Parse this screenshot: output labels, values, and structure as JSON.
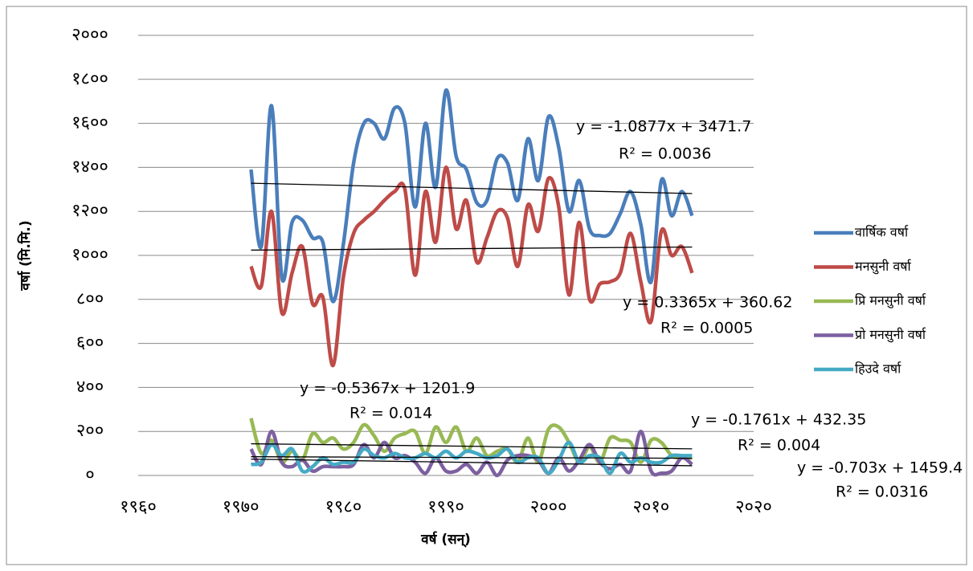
{
  "chart_data": {
    "type": "line",
    "xlabel": "वर्ष (सन्)",
    "ylabel": "वर्षा (मि.मि.)",
    "x": [
      1971,
      1972,
      1973,
      1974,
      1975,
      1976,
      1977,
      1978,
      1979,
      1980,
      1981,
      1982,
      1983,
      1984,
      1985,
      1986,
      1987,
      1988,
      1989,
      1990,
      1991,
      1992,
      1993,
      1994,
      1995,
      1996,
      1997,
      1998,
      1999,
      2000,
      2001,
      2002,
      2003,
      2004,
      2005,
      2006,
      2007,
      2008,
      2009,
      2010,
      2011,
      2012,
      2013,
      2014
    ],
    "series": [
      {
        "name": "वार्षिक वर्षा",
        "color": "#4a7ebb",
        "values": [
          1390,
          1040,
          1680,
          900,
          1150,
          1160,
          1080,
          1060,
          790,
          1050,
          1420,
          1600,
          1600,
          1530,
          1670,
          1600,
          1220,
          1600,
          1310,
          1750,
          1450,
          1390,
          1240,
          1250,
          1440,
          1420,
          1250,
          1530,
          1340,
          1630,
          1490,
          1200,
          1340,
          1120,
          1090,
          1100,
          1190,
          1290,
          1140,
          880,
          1340,
          1180,
          1290,
          1180
        ]
      },
      {
        "name": "मनसुनी वर्षा",
        "color": "#be4b48",
        "values": [
          950,
          860,
          1200,
          740,
          920,
          1040,
          780,
          810,
          500,
          900,
          1100,
          1160,
          1200,
          1250,
          1290,
          1300,
          910,
          1290,
          1060,
          1400,
          1120,
          1250,
          970,
          1080,
          1200,
          1170,
          950,
          1230,
          1110,
          1350,
          1220,
          820,
          1150,
          800,
          870,
          880,
          920,
          1100,
          880,
          700,
          1110,
          1000,
          1040,
          920
        ]
      },
      {
        "name": "प्रि मनसुनी वर्षा",
        "color": "#98b954",
        "values": [
          260,
          100,
          160,
          60,
          110,
          70,
          190,
          150,
          170,
          120,
          150,
          230,
          180,
          110,
          170,
          190,
          200,
          100,
          220,
          150,
          220,
          110,
          170,
          90,
          110,
          120,
          60,
          170,
          60,
          210,
          220,
          150,
          60,
          130,
          60,
          170,
          160,
          150,
          60,
          160,
          150,
          90,
          80,
          80
        ]
      },
      {
        "name": "प्रो मनसुनी वर्षा",
        "color": "#7d60a0",
        "values": [
          120,
          50,
          200,
          60,
          40,
          70,
          20,
          40,
          40,
          40,
          50,
          140,
          80,
          150,
          80,
          90,
          60,
          10,
          80,
          20,
          20,
          50,
          10,
          60,
          0,
          70,
          90,
          90,
          70,
          10,
          80,
          20,
          70,
          140,
          60,
          30,
          50,
          20,
          200,
          20,
          10,
          20,
          80,
          50
        ]
      },
      {
        "name": "हिउदे वर्षा",
        "color": "#46aac5",
        "values": [
          50,
          60,
          140,
          90,
          120,
          20,
          40,
          80,
          50,
          60,
          60,
          120,
          90,
          80,
          100,
          80,
          80,
          100,
          80,
          110,
          80,
          110,
          100,
          80,
          90,
          120,
          60,
          80,
          80,
          10,
          70,
          150,
          60,
          90,
          80,
          10,
          100,
          60,
          80,
          60,
          60,
          90,
          90,
          90
        ]
      }
    ],
    "trendlines": [
      {
        "x": [
          1971,
          2014
        ],
        "values": [
          1328,
          1281
        ],
        "equation": "y = -1.0877x + 3471.7",
        "r2": "R² = 0.0036"
      },
      {
        "x": [
          1971,
          2014
        ],
        "values": [
          1024,
          1038
        ],
        "equation": "y = 0.3365x + 360.62",
        "r2": "R² = 0.0005"
      },
      {
        "x": [
          1971,
          2014
        ],
        "values": [
          144,
          121
        ],
        "equation": "y = -0.5367x + 1201.9",
        "r2": "R² = 0.014"
      },
      {
        "x": [
          1971,
          2014
        ],
        "values": [
          85,
          78
        ],
        "equation": "y = -0.1761x + 432.35",
        "r2": "R² = 0.004"
      },
      {
        "x": [
          1971,
          2014
        ],
        "values": [
          74,
          44
        ],
        "equation": "y = -0.703x + 1459.4",
        "r2": "R² = 0.0316"
      }
    ],
    "xlim": [
      1960,
      2020
    ],
    "xticks": [
      {
        "value": 1960,
        "label": "१९६०"
      },
      {
        "value": 1970,
        "label": "१९७०"
      },
      {
        "value": 1980,
        "label": "१९८०"
      },
      {
        "value": 1990,
        "label": "१९९०"
      },
      {
        "value": 2000,
        "label": "२०००"
      },
      {
        "value": 2010,
        "label": "२०१०"
      },
      {
        "value": 2020,
        "label": "२०२०"
      }
    ],
    "ylim": [
      0,
      2000
    ],
    "yticks": [
      {
        "value": 0,
        "label": "०"
      },
      {
        "value": 200,
        "label": "२००"
      },
      {
        "value": 400,
        "label": "४००"
      },
      {
        "value": 600,
        "label": "६००"
      },
      {
        "value": 800,
        "label": "८००"
      },
      {
        "value": 1000,
        "label": "१०००"
      },
      {
        "value": 1200,
        "label": "१२००"
      },
      {
        "value": 1400,
        "label": "१४००"
      },
      {
        "value": 1600,
        "label": "१६००"
      },
      {
        "value": 1800,
        "label": "१८००"
      },
      {
        "value": 2000,
        "label": "२०००"
      }
    ],
    "grid": true,
    "legend": "right"
  }
}
